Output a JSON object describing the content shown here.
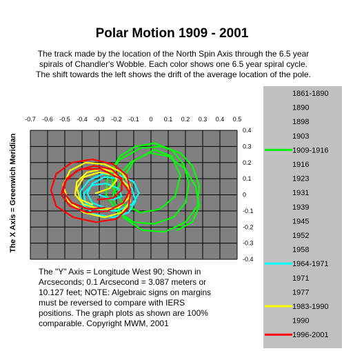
{
  "title": "Polar Motion 1909 - 2001",
  "description": "The track made by the location of the North Spin Axis through the 6.5 year spirals of Chandler's Wobble.  Each color shows one 6.5 year spiral cycle. The shift towards the left shows the drift of the average location of the pole.",
  "footnote": "The \"Y\" Axis = Longitude West 90; Shown in Arcseconds;  0.1 Arcsecond = 3.087 meters or 10.127 feet; NOTE:  Algebraic signs on margins must be reversed to compare with IERS positions.  The graph plots as shown are 100% comparable.  Copyright MWM, 2001",
  "colors": {
    "plot_background": "#808080",
    "grid": "#000000",
    "legend_background": "#c0c0c0"
  },
  "chart_data": {
    "type": "line",
    "xlim": [
      -0.7,
      0.5
    ],
    "ylim": [
      -0.4,
      0.4
    ],
    "x_ticks": [
      "-0.7",
      "-0.6",
      "-0.5",
      "-0.4",
      "-0.3",
      "-0.2",
      "-0.1",
      "0",
      "0.1",
      "0.2",
      "0.3",
      "0.4",
      "0.5"
    ],
    "y_ticks": [
      "0.4",
      "0.3",
      "0.2",
      "0.1",
      "0",
      "-0.1",
      "-0.2",
      "-0.3",
      "-0.4"
    ],
    "ylabel": "The X Axis = Greenwich Meridian",
    "grid": true,
    "legend_placement": "right",
    "legend": [
      {
        "label": "1861-1890"
      },
      {
        "label": "1890"
      },
      {
        "label": "1898"
      },
      {
        "label": "1903"
      },
      {
        "label": "1909-1916",
        "color": "#00ff00"
      },
      {
        "label": "1916"
      },
      {
        "label": "1923"
      },
      {
        "label": "1931"
      },
      {
        "label": "1939"
      },
      {
        "label": "1945"
      },
      {
        "label": "1952"
      },
      {
        "label": "1958"
      },
      {
        "label": "1964-1971",
        "color": "#00ffff"
      },
      {
        "label": "1971"
      },
      {
        "label": "1977"
      },
      {
        "label": "1983-1990",
        "color": "#ffff00"
      },
      {
        "label": "1990"
      },
      {
        "label": "1996-2001",
        "color": "#ff0000"
      }
    ],
    "series": [
      {
        "name": "1909-1916",
        "color": "#00ff00",
        "x": [
          -0.2,
          -0.1,
          0.02,
          0.12,
          0.17,
          0.14,
          0.05,
          -0.06,
          -0.16,
          -0.22,
          -0.23,
          -0.18,
          -0.09,
          0.02,
          0.12,
          0.19,
          0.22,
          0.2,
          0.13,
          0.02,
          -0.1,
          -0.2,
          -0.26,
          -0.25,
          -0.18,
          -0.06,
          0.06,
          0.17,
          0.24,
          0.28,
          0.27,
          0.2,
          0.08,
          -0.05,
          -0.16,
          -0.22,
          -0.21,
          -0.12,
          -0.01,
          0.1,
          0.2,
          0.26,
          0.28,
          0.24,
          0.15
        ],
        "y": [
          0.03,
          0.21,
          0.28,
          0.24,
          0.12,
          -0.01,
          -0.09,
          -0.11,
          -0.06,
          0.04,
          0.15,
          0.24,
          0.3,
          0.32,
          0.28,
          0.19,
          0.07,
          -0.05,
          -0.14,
          -0.18,
          -0.17,
          -0.1,
          0.0,
          0.12,
          0.22,
          0.29,
          0.3,
          0.26,
          0.18,
          0.06,
          -0.07,
          -0.17,
          -0.23,
          -0.22,
          -0.14,
          -0.03,
          0.09,
          0.2,
          0.26,
          0.24,
          0.16,
          0.05,
          -0.07,
          -0.17,
          -0.22
        ]
      },
      {
        "name": "1964-1971",
        "color": "#00ffff",
        "x": [
          -0.3,
          -0.22,
          -0.17,
          -0.19,
          -0.26,
          -0.34,
          -0.39,
          -0.38,
          -0.31,
          -0.2,
          -0.11,
          -0.07,
          -0.1,
          -0.18,
          -0.28,
          -0.36,
          -0.41,
          -0.4,
          -0.33,
          -0.22,
          -0.13,
          -0.09,
          -0.11,
          -0.18,
          -0.27,
          -0.34,
          -0.37,
          -0.34,
          -0.27
        ],
        "y": [
          0.0,
          -0.03,
          -0.01,
          0.04,
          0.07,
          0.06,
          0.01,
          -0.05,
          -0.09,
          -0.1,
          -0.06,
          0.01,
          0.08,
          0.12,
          0.13,
          0.09,
          0.02,
          -0.06,
          -0.12,
          -0.14,
          -0.11,
          -0.04,
          0.04,
          0.1,
          0.11,
          0.07,
          0.01,
          -0.05,
          -0.08
        ]
      },
      {
        "name": "1983-1990",
        "color": "#ffff00",
        "x": [
          -0.32,
          -0.24,
          -0.2,
          -0.21,
          -0.28,
          -0.37,
          -0.43,
          -0.44,
          -0.39,
          -0.29,
          -0.19,
          -0.13,
          -0.12,
          -0.17,
          -0.27,
          -0.38,
          -0.47,
          -0.51,
          -0.48,
          -0.39,
          -0.27,
          -0.17,
          -0.12,
          -0.13,
          -0.2,
          -0.3,
          -0.39,
          -0.43,
          -0.41,
          -0.34
        ],
        "y": [
          0.01,
          0.04,
          0.09,
          0.14,
          0.16,
          0.14,
          0.08,
          0.0,
          -0.06,
          -0.09,
          -0.08,
          -0.02,
          0.06,
          0.14,
          0.19,
          0.2,
          0.15,
          0.06,
          -0.04,
          -0.11,
          -0.14,
          -0.11,
          -0.04,
          0.05,
          0.12,
          0.14,
          0.11,
          0.04,
          -0.03,
          -0.06
        ]
      },
      {
        "name": "1996-2001",
        "color": "#ff0000",
        "x": [
          -0.31,
          -0.22,
          -0.17,
          -0.17,
          -0.23,
          -0.33,
          -0.43,
          -0.5,
          -0.52,
          -0.47,
          -0.37,
          -0.25,
          -0.16,
          -0.12,
          -0.14,
          -0.22,
          -0.34,
          -0.46,
          -0.55,
          -0.58,
          -0.55,
          -0.45,
          -0.32,
          -0.2,
          -0.13,
          -0.12,
          -0.18,
          -0.29,
          -0.41,
          -0.49,
          -0.51,
          -0.46,
          -0.36,
          -0.27
        ],
        "y": [
          -0.03,
          -0.02,
          0.03,
          0.1,
          0.16,
          0.18,
          0.15,
          0.08,
          0.0,
          -0.07,
          -0.11,
          -0.1,
          -0.05,
          0.03,
          0.12,
          0.19,
          0.22,
          0.2,
          0.13,
          0.03,
          -0.07,
          -0.14,
          -0.17,
          -0.15,
          -0.08,
          0.01,
          0.1,
          0.16,
          0.16,
          0.1,
          0.02,
          -0.05,
          -0.09,
          -0.08
        ]
      }
    ]
  }
}
